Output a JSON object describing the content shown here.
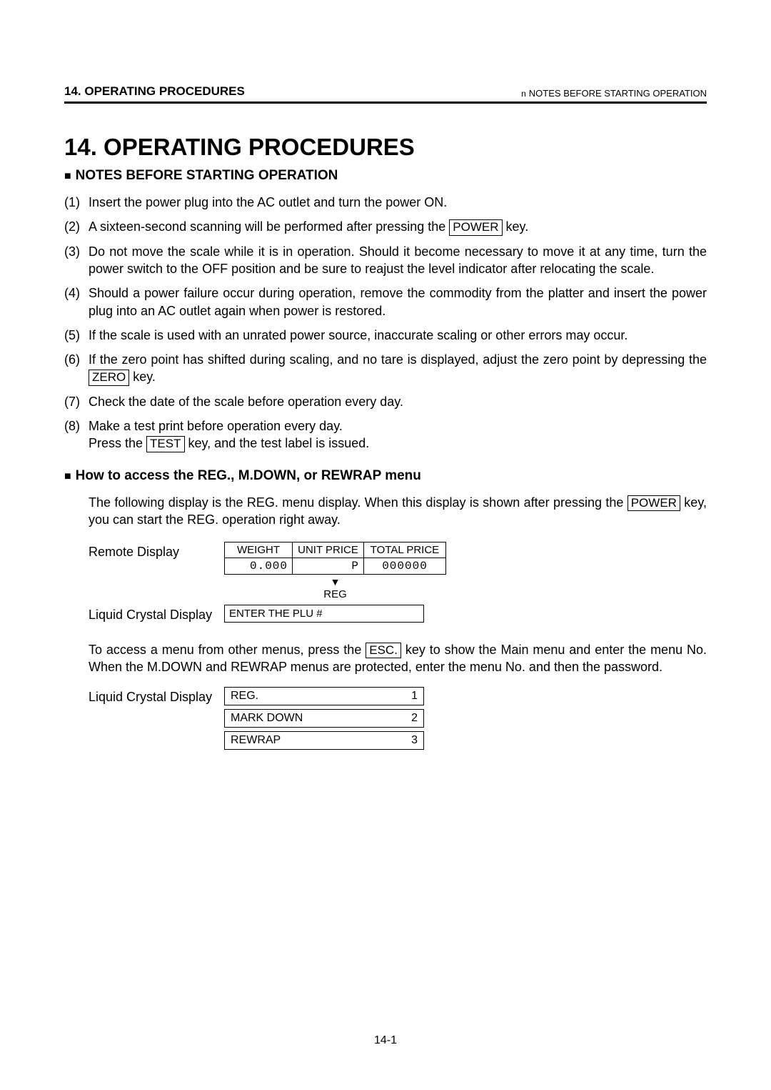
{
  "header": {
    "left": "14. OPERATING PROCEDURES",
    "right_prefix": "n",
    "right": "NOTES BEFORE STARTING OPERATION"
  },
  "chapter_title": "14.  OPERATING PROCEDURES",
  "section1_title": "NOTES BEFORE STARTING OPERATION",
  "keys": {
    "power": "POWER",
    "zero": "ZERO",
    "test": "TEST",
    "esc": "ESC."
  },
  "notes": [
    {
      "num": "(1)",
      "pre": "Insert the power plug into the AC outlet and turn the power ON.",
      "key": null,
      "post": ""
    },
    {
      "num": "(2)",
      "pre": "A sixteen-second scanning will be performed after pressing the ",
      "key": "power",
      "post": " key."
    },
    {
      "num": "(3)",
      "pre": "Do not move the scale while it is in operation.  Should it become necessary to move it at any time, turn the power switch to the OFF position and be sure to reajust the level indicator after relocating the scale.",
      "key": null,
      "post": ""
    },
    {
      "num": "(4)",
      "pre": "Should a power failure occur during operation, remove the commodity from the platter and insert the power plug into an AC outlet again when power is restored.",
      "key": null,
      "post": ""
    },
    {
      "num": "(5)",
      "pre": "If the scale is used with an unrated power source, inaccurate scaling or other errors may occur.",
      "key": null,
      "post": ""
    },
    {
      "num": "(6)",
      "pre": "If the zero point has shifted during scaling, and no tare is displayed, adjust the zero point by depressing the ",
      "key": "zero",
      "post": " key."
    },
    {
      "num": "(7)",
      "pre": "Check the date of the scale before operation every day.",
      "key": null,
      "post": ""
    },
    {
      "num": "(8)",
      "pre": "Make a test print before operation every day.\nPress the ",
      "key": "test",
      "post": " key, and the test label is issued."
    }
  ],
  "section2_title": "How to access the REG., M.DOWN, or REWRAP menu",
  "para1_pre": "The following display is the REG.  menu display.  When this display is shown after pressing the ",
  "para1_post": " key, you can start the REG. operation right away.",
  "remote_label": "Remote Display",
  "lcd_label": "Liquid Crystal Display",
  "remote_headers": [
    "WEIGHT",
    "UNIT PRICE",
    "TOTAL PRICE"
  ],
  "remote_values": [
    "0.000",
    "P",
    "000000"
  ],
  "reg_label": "REG",
  "lcd_text": "ENTER THE PLU #",
  "para2_pre": "To access a menu from other menus, press the ",
  "para2_post": " key to show the Main menu and enter the menu No.  When the M.DOWN and REWRAP menus are protected, enter the menu No. and then the password.",
  "menu_items": [
    {
      "label": "REG.",
      "num": "1"
    },
    {
      "label": "MARK DOWN",
      "num": "2"
    },
    {
      "label": "REWRAP",
      "num": "3"
    }
  ],
  "page_number": "14-1"
}
